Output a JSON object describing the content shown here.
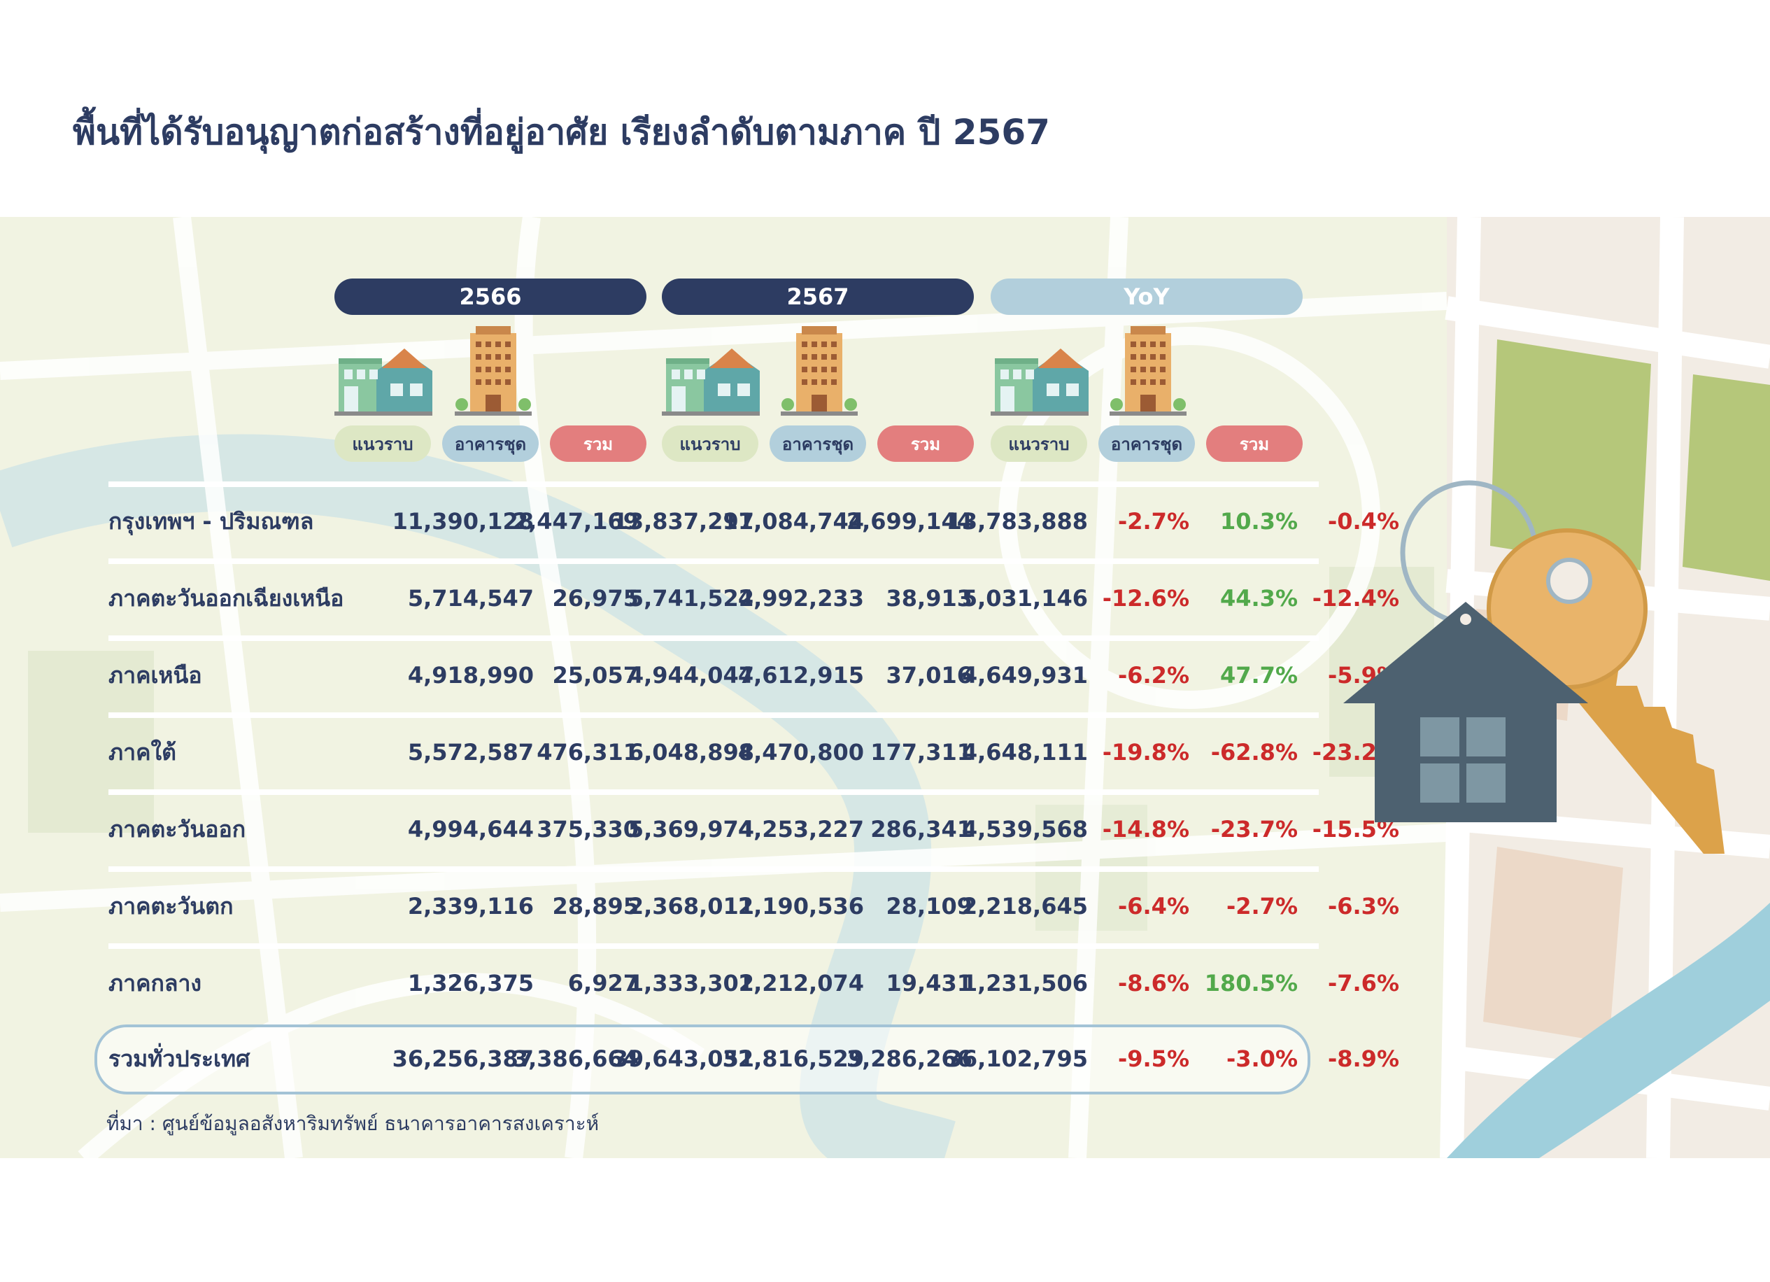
{
  "title": "พื้นที่ได้รับอนุญาตก่อสร้างที่อยู่อาศัย เรียงลำดับตามภาค ปี 2567",
  "groups": [
    {
      "label": "2566"
    },
    {
      "label": "2567"
    },
    {
      "label": "YoY"
    }
  ],
  "sub_labels": {
    "lowrise": "แนวราบ",
    "condo": "อาคารชุด",
    "total": "รวม"
  },
  "rows": [
    {
      "region": "กรุงเทพฯ - ปริมณฑล",
      "lr66": "11,390,128",
      "co66": "2,447,169",
      "to66": "13,837,297",
      "lr67": "11,084,744",
      "co67": "2,699,144",
      "to67": "13,783,888",
      "lr_yoy": "-2.7%",
      "co_yoy": "10.3%",
      "to_yoy": "-0.4%"
    },
    {
      "region": "ภาคตะวันออกเฉียงเหนือ",
      "lr66": "5,714,547",
      "co66": "26,975",
      "to66": "5,741,522",
      "lr67": "4,992,233",
      "co67": "38,913",
      "to67": "5,031,146",
      "lr_yoy": "-12.6%",
      "co_yoy": "44.3%",
      "to_yoy": "-12.4%"
    },
    {
      "region": "ภาคเหนือ",
      "lr66": "4,918,990",
      "co66": "25,057",
      "to66": "4,944,047",
      "lr67": "4,612,915",
      "co67": "37,016",
      "to67": "4,649,931",
      "lr_yoy": "-6.2%",
      "co_yoy": "47.7%",
      "to_yoy": "-5.9%"
    },
    {
      "region": "ภาคใต้",
      "lr66": "5,572,587",
      "co66": "476,311",
      "to66": "6,048,898",
      "lr67": "4,470,800",
      "co67": "177,311",
      "to67": "4,648,111",
      "lr_yoy": "-19.8%",
      "co_yoy": "-62.8%",
      "to_yoy": "-23.2%"
    },
    {
      "region": "ภาคตะวันออก",
      "lr66": "4,994,644",
      "co66": "375,330",
      "to66": "5,369,974",
      "lr67": "4,253,227",
      "co67": "286,341",
      "to67": "4,539,568",
      "lr_yoy": "-14.8%",
      "co_yoy": "-23.7%",
      "to_yoy": "-15.5%"
    },
    {
      "region": "ภาคตะวันตก",
      "lr66": "2,339,116",
      "co66": "28,895",
      "to66": "2,368,011",
      "lr67": "2,190,536",
      "co67": "28,109",
      "to67": "2,218,645",
      "lr_yoy": "-6.4%",
      "co_yoy": "-2.7%",
      "to_yoy": "-6.3%"
    },
    {
      "region": "ภาคกลาง",
      "lr66": "1,326,375",
      "co66": "6,927",
      "to66": "1,333,302",
      "lr67": "1,212,074",
      "co67": "19,431",
      "to67": "1,231,506",
      "lr_yoy": "-8.6%",
      "co_yoy": "180.5%",
      "to_yoy": "-7.6%"
    }
  ],
  "total_row": {
    "region": "รวมทั่วประเทศ",
    "lr66": "36,256,387",
    "co66": "3,386,664",
    "to66": "39,643,051",
    "lr67": "32,816,529",
    "co67": "3,286,266",
    "to67": "36,102,795",
    "lr_yoy": "-9.5%",
    "co_yoy": "-3.0%",
    "to_yoy": "-8.9%"
  },
  "source": "ที่มา : ศูนย์ข้อมูลอสังหาริมทรัพย์ ธนาคารอาคารสงเคราะห์",
  "colors": {
    "navy": "#2d3c62",
    "negative": "#cc2a2a",
    "positive": "#52a94b",
    "yoy_pill": "#b2cfdc",
    "total_pill": "#e37e7e",
    "lowrise_pill": "#dde7c4"
  },
  "icons": [
    "townhouse-icon",
    "condo-tower-icon",
    "house-keychain-icon",
    "key-icon"
  ]
}
